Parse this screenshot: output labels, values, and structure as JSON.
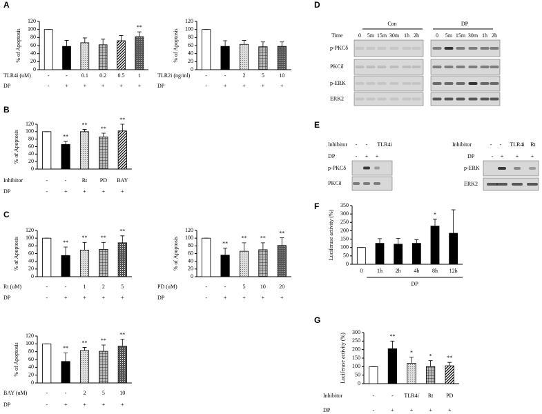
{
  "panels": [
    "A",
    "B",
    "C",
    "D",
    "E",
    "F",
    "G"
  ],
  "chart_data": [
    {
      "type": "bar",
      "ylabel": "% of Apoptosis",
      "ylim": [
        0,
        120
      ],
      "yticks": [
        0,
        20,
        40,
        60,
        80,
        100,
        120
      ],
      "category_label": "TLR4i (uM)",
      "categories": [
        "-",
        "-",
        "0.1",
        "0.2",
        "0.5",
        "1"
      ],
      "dp_label": "DP",
      "dp": [
        "-",
        "+",
        "+",
        "+",
        "+",
        "+"
      ],
      "values": [
        100,
        58,
        67,
        62,
        72,
        82
      ],
      "errors": [
        0,
        15,
        12,
        14,
        13,
        12
      ],
      "annotations": [
        null,
        null,
        null,
        null,
        null,
        "**"
      ],
      "patterns": [
        "white",
        "black",
        "dots",
        "grid",
        "hatch",
        "dense"
      ]
    },
    {
      "type": "bar",
      "ylabel": "% of Apoptosis",
      "ylim": [
        0,
        120
      ],
      "yticks": [
        0,
        20,
        40,
        60,
        80,
        100,
        120
      ],
      "category_label": "TLR2i (ng/ml)",
      "categories": [
        "-",
        "-",
        "2",
        "5",
        "10"
      ],
      "dp_label": "DP",
      "dp": [
        "-",
        "+",
        "+",
        "+",
        "+"
      ],
      "values": [
        100,
        58,
        63,
        57,
        58
      ],
      "errors": [
        0,
        14,
        10,
        12,
        11
      ],
      "annotations": [
        null,
        null,
        null,
        null,
        null
      ],
      "patterns": [
        "white",
        "black",
        "dots",
        "grid",
        "dense"
      ]
    },
    {
      "type": "bar",
      "ylabel": "% of Apoptosis",
      "ylim": [
        0,
        120
      ],
      "yticks": [
        0,
        20,
        40,
        60,
        80,
        100,
        120
      ],
      "category_label": "Inhibitor",
      "categories": [
        "-",
        "-",
        "Rt",
        "PD",
        "BAY"
      ],
      "dp_label": "DP",
      "dp": [
        "-",
        "+",
        "+",
        "+",
        "+"
      ],
      "values": [
        100,
        66,
        100,
        86,
        102
      ],
      "errors": [
        0,
        8,
        6,
        10,
        18
      ],
      "annotations": [
        null,
        "**",
        "**",
        "**",
        "**"
      ],
      "patterns": [
        "white",
        "black",
        "dots",
        "grid",
        "hatch"
      ]
    },
    {
      "type": "bar",
      "ylabel": "% of Apoptosis",
      "ylim": [
        0,
        120
      ],
      "yticks": [
        0,
        20,
        40,
        60,
        80,
        100,
        120
      ],
      "category_label": "Rt (uM)",
      "categories": [
        "-",
        "-",
        "1",
        "2",
        "5"
      ],
      "dp_label": "DP",
      "dp": [
        "-",
        "+",
        "+",
        "+",
        "+"
      ],
      "values": [
        100,
        55,
        69,
        71,
        88
      ],
      "errors": [
        0,
        22,
        20,
        18,
        18
      ],
      "annotations": [
        null,
        "**",
        "**",
        "**",
        "**"
      ],
      "patterns": [
        "white",
        "black",
        "dots",
        "grid",
        "dense"
      ]
    },
    {
      "type": "bar",
      "ylabel": "% of Apoptosis",
      "ylim": [
        0,
        120
      ],
      "yticks": [
        0,
        20,
        40,
        60,
        80,
        100,
        120
      ],
      "category_label": "PD (uM)",
      "categories": [
        "-",
        "-",
        "5",
        "10",
        "20"
      ],
      "dp_label": "DP",
      "dp": [
        "-",
        "+",
        "+",
        "+",
        "+"
      ],
      "values": [
        100,
        56,
        66,
        70,
        81
      ],
      "errors": [
        0,
        18,
        22,
        18,
        20
      ],
      "annotations": [
        null,
        "**",
        "**",
        "**",
        "**"
      ],
      "patterns": [
        "white",
        "black",
        "dots",
        "grid",
        "dense"
      ]
    },
    {
      "type": "bar",
      "ylabel": "% of Apoptosis",
      "ylim": [
        0,
        120
      ],
      "yticks": [
        0,
        20,
        40,
        60,
        80,
        100,
        120
      ],
      "category_label": "BAY (uM)",
      "categories": [
        "-",
        "-",
        "2",
        "5",
        "10"
      ],
      "dp_label": "DP",
      "dp": [
        "-",
        "+",
        "+",
        "+",
        "+"
      ],
      "values": [
        100,
        55,
        83,
        81,
        94
      ],
      "errors": [
        0,
        22,
        8,
        16,
        18
      ],
      "annotations": [
        null,
        "**",
        "**",
        "**",
        "**"
      ],
      "patterns": [
        "white",
        "black",
        "dots",
        "grid",
        "dense"
      ]
    },
    {
      "type": "bar",
      "ylabel": "Luciferase activity (%)",
      "ylim": [
        0,
        350
      ],
      "yticks": [
        0,
        50,
        100,
        150,
        200,
        250,
        300,
        350
      ],
      "categories": [
        "0",
        "1h",
        "2h",
        "4h",
        "8h",
        "12h"
      ],
      "xlabel": "DP",
      "values": [
        100,
        125,
        120,
        125,
        228,
        185
      ],
      "errors": [
        0,
        28,
        35,
        22,
        42,
        140
      ],
      "annotations": [
        null,
        null,
        null,
        null,
        "*",
        null
      ],
      "patterns": [
        "white",
        "black",
        "black",
        "black",
        "black",
        "black"
      ]
    },
    {
      "type": "bar",
      "ylabel": "Luciferase activity (%)",
      "ylim": [
        0,
        300
      ],
      "yticks": [
        0,
        50,
        100,
        150,
        200,
        250,
        300
      ],
      "category_label": "Inhibitor",
      "categories": [
        "-",
        "-",
        "TLR4i",
        "Rt",
        "PD"
      ],
      "dp_label": "DP",
      "dp": [
        "-",
        "+",
        "+",
        "+",
        "+"
      ],
      "values": [
        100,
        205,
        120,
        100,
        105
      ],
      "errors": [
        0,
        45,
        35,
        35,
        20
      ],
      "annotations": [
        null,
        "**",
        "*",
        "*",
        "**"
      ],
      "patterns": [
        "white",
        "black",
        "dots",
        "grid",
        "hatch"
      ]
    }
  ],
  "blot_D": {
    "groups": [
      "Con",
      "DP"
    ],
    "time_label": "Time",
    "times_con": [
      "0",
      "5m",
      "15m",
      "30m",
      "1h",
      "2h"
    ],
    "times_dp": [
      "0",
      "5m",
      "15m",
      "30m",
      "1h",
      "2h"
    ],
    "rows": [
      "p-PKCδ",
      "PKCδ",
      "p-ERK",
      "ERK2"
    ]
  },
  "blot_E_left": {
    "inhibitor_label": "Inhibitor",
    "inhibitor": [
      "-",
      "-",
      "TLR4i"
    ],
    "dp_label": "DP",
    "dp": [
      "-",
      "+",
      "+"
    ],
    "rows": [
      "p-PKCδ",
      "PKCδ"
    ]
  },
  "blot_E_right": {
    "inhibitor_label": "Inhibitor",
    "inhibitor": [
      "-",
      "-",
      "TLR4i",
      "Rt"
    ],
    "dp_label": "DP",
    "dp": [
      "-",
      "+",
      "+",
      "+"
    ],
    "rows": [
      "p-ERK",
      "ERK2"
    ]
  }
}
